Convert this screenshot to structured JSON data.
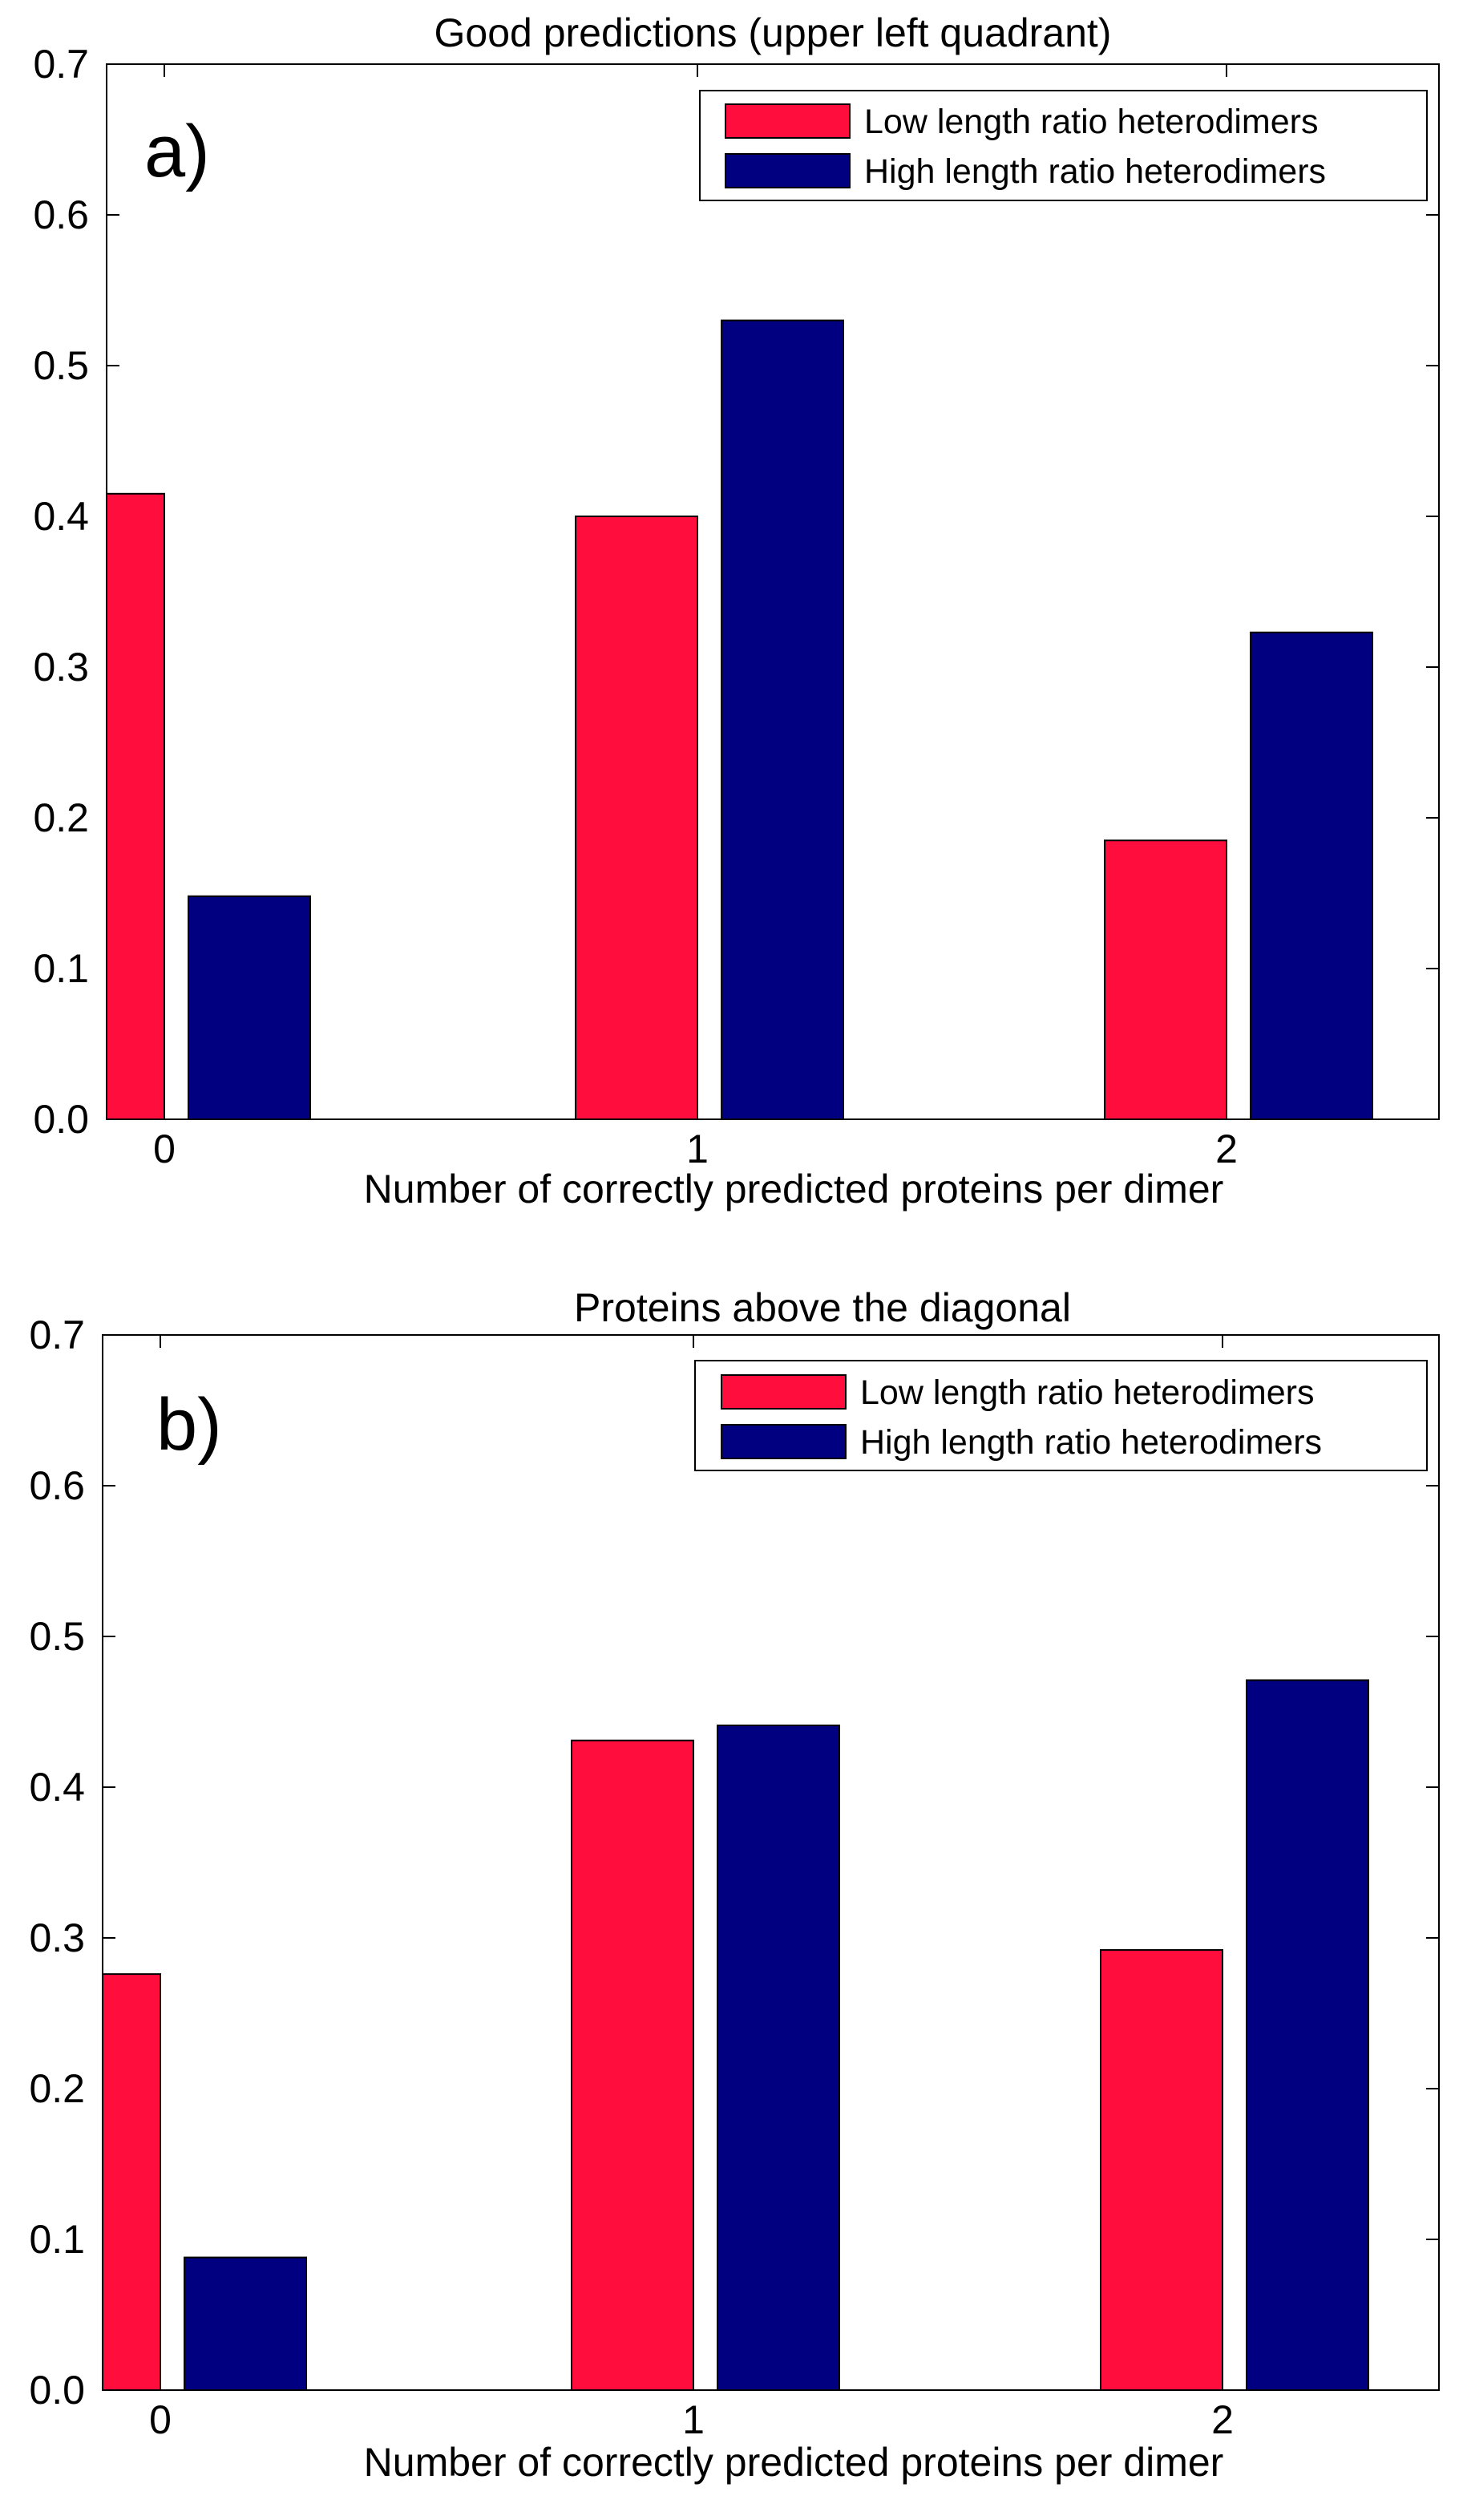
{
  "chart_data": [
    {
      "type": "bar",
      "panel_label": "a)",
      "title": "Good predictions (upper left quadrant)",
      "xlabel": "Number of correctly predicted proteins per dimer",
      "ylabel": "",
      "categories": [
        "0",
        "1",
        "2"
      ],
      "ylim": [
        0,
        0.7
      ],
      "yticks": [
        "0.0",
        "0.1",
        "0.2",
        "0.3",
        "0.4",
        "0.5",
        "0.6",
        "0.7"
      ],
      "legend_position": "top-right",
      "series": [
        {
          "name": "Low length ratio heterodimers",
          "color": "#ff0d3d",
          "values": [
            0.415,
            0.4,
            0.185
          ]
        },
        {
          "name": "High length ratio heterodimers",
          "color": "#000080",
          "values": [
            0.148,
            0.53,
            0.323
          ]
        }
      ]
    },
    {
      "type": "bar",
      "panel_label": "b)",
      "title": "Proteins above the diagonal",
      "xlabel": "Number of correctly predicted proteins per dimer",
      "ylabel": "",
      "categories": [
        "0",
        "1",
        "2"
      ],
      "ylim": [
        0,
        0.7
      ],
      "yticks": [
        "0.0",
        "0.1",
        "0.2",
        "0.3",
        "0.4",
        "0.5",
        "0.6",
        "0.7"
      ],
      "legend_position": "top-right",
      "series": [
        {
          "name": "Low length ratio heterodimers",
          "color": "#ff0d3d",
          "values": [
            0.276,
            0.431,
            0.292
          ]
        },
        {
          "name": "High length ratio heterodimers",
          "color": "#000080",
          "values": [
            0.088,
            0.441,
            0.471
          ]
        }
      ]
    }
  ]
}
